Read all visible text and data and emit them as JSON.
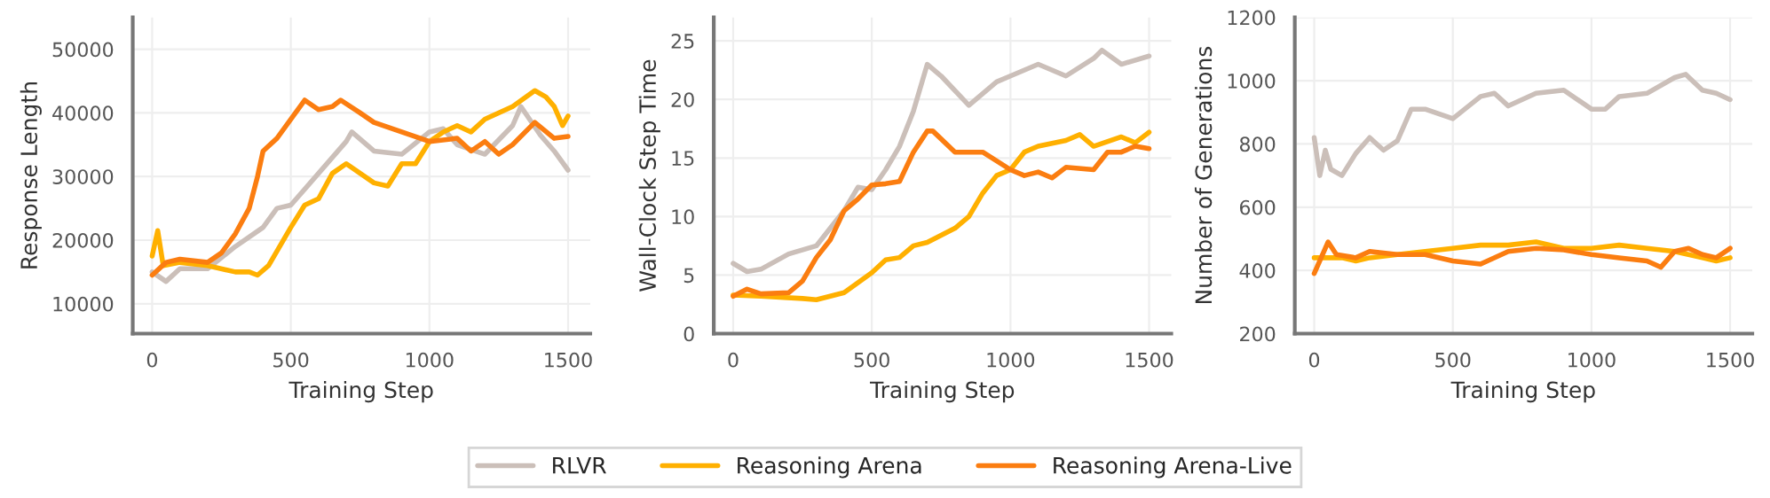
{
  "chart_data": [
    {
      "type": "line",
      "xlabel": "Training Step",
      "ylabel": "Response Length",
      "xlim": [
        -70,
        1580
      ],
      "xticks": [
        0,
        500,
        1000,
        1500
      ],
      "ylim": [
        5300,
        55000
      ],
      "yticks": [
        10000,
        20000,
        30000,
        40000,
        50000
      ],
      "grid": true,
      "legend": "bottom",
      "series": [
        {
          "name": "RLVR",
          "color": "#cbbfb9",
          "x": [
            0,
            50,
            100,
            200,
            300,
            400,
            450,
            500,
            600,
            700,
            720,
            800,
            900,
            1000,
            1050,
            1100,
            1200,
            1300,
            1330,
            1400,
            1450,
            1500
          ],
          "values": [
            15000,
            13500,
            15500,
            15500,
            19000,
            22000,
            25000,
            25500,
            30500,
            35500,
            37000,
            34000,
            33500,
            37000,
            37500,
            35000,
            33500,
            38000,
            41000,
            36500,
            34000,
            31000
          ]
        },
        {
          "name": "Reasoning Arena",
          "color": "#ffb000",
          "x": [
            0,
            20,
            40,
            100,
            200,
            300,
            350,
            380,
            420,
            500,
            550,
            600,
            650,
            700,
            800,
            850,
            900,
            950,
            1000,
            1050,
            1100,
            1150,
            1200,
            1300,
            1380,
            1420,
            1450,
            1480,
            1500
          ],
          "values": [
            17500,
            21500,
            16000,
            16500,
            16000,
            15000,
            15000,
            14500,
            16000,
            22000,
            25500,
            26500,
            30500,
            32000,
            29000,
            28500,
            32000,
            32000,
            35500,
            37000,
            38000,
            37000,
            39000,
            41000,
            43500,
            42500,
            41000,
            38000,
            39500
          ]
        },
        {
          "name": "Reasoning Arena-Live",
          "color": "#fb7d10",
          "x": [
            0,
            50,
            100,
            200,
            250,
            300,
            350,
            380,
            400,
            450,
            500,
            550,
            600,
            650,
            680,
            750,
            800,
            900,
            1000,
            1100,
            1150,
            1200,
            1250,
            1300,
            1380,
            1450,
            1500
          ],
          "values": [
            14500,
            16500,
            17000,
            16500,
            18000,
            21000,
            25000,
            30000,
            34000,
            36000,
            39000,
            42000,
            40500,
            41000,
            42000,
            40000,
            38500,
            37000,
            35500,
            36000,
            34000,
            35500,
            33500,
            35000,
            38500,
            36000,
            36300
          ]
        }
      ]
    },
    {
      "type": "line",
      "xlabel": "Training Step",
      "ylabel": "Wall-Clock Step Time",
      "xlim": [
        -70,
        1580
      ],
      "xticks": [
        0,
        500,
        1000,
        1500
      ],
      "ylim": [
        0,
        27
      ],
      "yticks": [
        0,
        5,
        10,
        15,
        20,
        25
      ],
      "grid": true,
      "series": [
        {
          "color": "#cbbfb9",
          "x": [
            0,
            50,
            100,
            200,
            300,
            350,
            400,
            450,
            500,
            550,
            600,
            650,
            700,
            750,
            850,
            950,
            1000,
            1100,
            1200,
            1300,
            1330,
            1400,
            1500
          ],
          "values": [
            6,
            5.3,
            5.5,
            6.8,
            7.5,
            9,
            10.5,
            12.5,
            12.3,
            14,
            16,
            19,
            23,
            22,
            19.5,
            21.5,
            22,
            23,
            22,
            23.5,
            24.2,
            23,
            23.7
          ]
        },
        {
          "color": "#ffb000",
          "x": [
            0,
            100,
            250,
            300,
            400,
            500,
            550,
            600,
            650,
            700,
            800,
            850,
            900,
            950,
            1000,
            1050,
            1100,
            1200,
            1250,
            1300,
            1400,
            1450,
            1500
          ],
          "values": [
            3.3,
            3.2,
            3.0,
            2.9,
            3.5,
            5.2,
            6.3,
            6.5,
            7.5,
            7.8,
            9,
            10,
            12,
            13.5,
            14,
            15.5,
            16,
            16.5,
            17,
            16,
            16.8,
            16.3,
            17.2
          ]
        },
        {
          "color": "#fb7d10",
          "x": [
            0,
            50,
            100,
            200,
            250,
            300,
            350,
            400,
            450,
            500,
            550,
            600,
            650,
            700,
            720,
            800,
            850,
            900,
            1000,
            1050,
            1100,
            1150,
            1200,
            1300,
            1350,
            1400,
            1450,
            1500
          ],
          "values": [
            3.2,
            3.8,
            3.4,
            3.5,
            4.5,
            6.5,
            8,
            10.5,
            11.5,
            12.7,
            12.8,
            13,
            15.5,
            17.3,
            17.3,
            15.5,
            15.5,
            15.5,
            14,
            13.5,
            13.8,
            13.3,
            14.2,
            14,
            15.5,
            15.5,
            16,
            15.8
          ]
        }
      ]
    },
    {
      "type": "line",
      "xlabel": "Training Step",
      "ylabel": "Number of Generations",
      "xlim": [
        -70,
        1580
      ],
      "xticks": [
        0,
        500,
        1000,
        1500
      ],
      "ylim": [
        200,
        1200
      ],
      "yticks": [
        200,
        400,
        600,
        800,
        1000,
        1200
      ],
      "grid": true,
      "series": [
        {
          "color": "#cbbfb9",
          "x": [
            0,
            20,
            40,
            60,
            100,
            150,
            200,
            250,
            300,
            350,
            400,
            500,
            600,
            650,
            700,
            800,
            900,
            1000,
            1050,
            1100,
            1200,
            1300,
            1340,
            1400,
            1450,
            1500
          ],
          "values": [
            820,
            700,
            780,
            720,
            700,
            770,
            820,
            780,
            810,
            910,
            910,
            880,
            950,
            960,
            920,
            960,
            970,
            910,
            910,
            950,
            960,
            1010,
            1020,
            970,
            960,
            940
          ]
        },
        {
          "color": "#ffb000",
          "x": [
            0,
            50,
            100,
            150,
            200,
            300,
            400,
            500,
            600,
            700,
            800,
            900,
            1000,
            1100,
            1200,
            1300,
            1350,
            1400,
            1450,
            1500
          ],
          "values": [
            440,
            440,
            440,
            430,
            440,
            450,
            460,
            470,
            480,
            480,
            490,
            470,
            470,
            480,
            470,
            460,
            450,
            440,
            430,
            440
          ]
        },
        {
          "color": "#fb7d10",
          "x": [
            0,
            50,
            80,
            150,
            200,
            300,
            400,
            500,
            600,
            700,
            800,
            900,
            1000,
            1100,
            1200,
            1250,
            1300,
            1350,
            1400,
            1450,
            1500
          ],
          "values": [
            390,
            490,
            450,
            440,
            460,
            450,
            450,
            430,
            420,
            460,
            470,
            465,
            450,
            440,
            430,
            410,
            460,
            470,
            450,
            440,
            470
          ]
        }
      ]
    }
  ]
}
